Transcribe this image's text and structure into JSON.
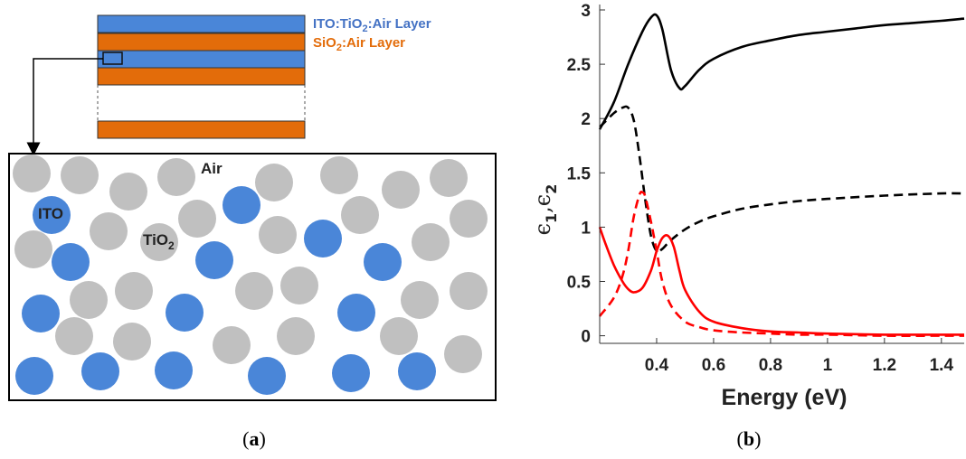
{
  "panel_a": {
    "label": "a",
    "legend": {
      "ito_layer": {
        "pre": "ITO:TiO",
        "sub": "2",
        "post": ":Air Layer",
        "color": "#4472c4"
      },
      "sio2_layer": {
        "pre": "SiO",
        "sub": "2",
        "post": ":Air Layer",
        "color": "#e36c0a"
      }
    },
    "labels": {
      "air": "Air",
      "ito": "ITO",
      "tio2_pre": "TiO",
      "tio2_sub": "2"
    },
    "colors": {
      "ito_particle": "#4a86d8",
      "tio2_particle": "#c0c0c0",
      "ito_stripe": "#4a86d8",
      "sio2_stripe": "#e36c0a"
    }
  },
  "panel_b": {
    "label": "b"
  },
  "chart_data": {
    "type": "line",
    "xlabel": "Energy (eV)",
    "ylabel": {
      "e": "ϵ",
      "s1": "1",
      "comma": ",",
      "s2": "2"
    },
    "xlim": [
      0.2,
      1.48
    ],
    "ylim": [
      -0.07,
      3.05
    ],
    "xticks": [
      0.4,
      0.6,
      0.8,
      1,
      1.2,
      1.4
    ],
    "xtick_labels": [
      "0.4",
      "0.6",
      "0.8",
      "1",
      "1.2",
      "1.4"
    ],
    "yticks": [
      0,
      0.5,
      1,
      1.5,
      2,
      2.5,
      3
    ],
    "ytick_labels": [
      "0",
      "0.5",
      "1",
      "1.5",
      "2",
      "2.5",
      "3"
    ],
    "grid": false,
    "series": [
      {
        "color": "#000000",
        "dash": "solid",
        "x": [
          0.2,
          0.25,
          0.3,
          0.35,
          0.38,
          0.4,
          0.42,
          0.45,
          0.48,
          0.5,
          0.55,
          0.6,
          0.7,
          0.8,
          0.9,
          1.0,
          1.1,
          1.2,
          1.3,
          1.4,
          1.48
        ],
        "y": [
          1.9,
          2.15,
          2.5,
          2.8,
          2.93,
          2.95,
          2.82,
          2.45,
          2.28,
          2.3,
          2.45,
          2.55,
          2.66,
          2.72,
          2.77,
          2.8,
          2.83,
          2.86,
          2.88,
          2.9,
          2.92
        ]
      },
      {
        "color": "#000000",
        "dash": "dashed",
        "x": [
          0.2,
          0.25,
          0.28,
          0.3,
          0.32,
          0.34,
          0.36,
          0.38,
          0.4,
          0.42,
          0.45,
          0.5,
          0.55,
          0.6,
          0.7,
          0.8,
          0.9,
          1.0,
          1.2,
          1.4,
          1.48
        ],
        "y": [
          1.92,
          2.05,
          2.1,
          2.1,
          1.98,
          1.65,
          1.25,
          0.92,
          0.78,
          0.8,
          0.88,
          0.98,
          1.05,
          1.1,
          1.17,
          1.21,
          1.24,
          1.26,
          1.29,
          1.31,
          1.31
        ]
      },
      {
        "color": "#ff0000",
        "dash": "solid",
        "x": [
          0.2,
          0.22,
          0.25,
          0.28,
          0.3,
          0.32,
          0.35,
          0.38,
          0.4,
          0.42,
          0.44,
          0.46,
          0.48,
          0.5,
          0.55,
          0.6,
          0.7,
          0.8,
          0.9,
          1.0,
          1.2,
          1.4,
          1.48
        ],
        "y": [
          1.0,
          0.85,
          0.65,
          0.5,
          0.43,
          0.4,
          0.44,
          0.6,
          0.78,
          0.9,
          0.92,
          0.82,
          0.6,
          0.42,
          0.22,
          0.13,
          0.07,
          0.04,
          0.03,
          0.02,
          0.01,
          0.01,
          0.01
        ]
      },
      {
        "color": "#ff0000",
        "dash": "dashed",
        "x": [
          0.2,
          0.25,
          0.28,
          0.3,
          0.32,
          0.34,
          0.35,
          0.36,
          0.38,
          0.4,
          0.42,
          0.45,
          0.5,
          0.55,
          0.6,
          0.7,
          0.8,
          0.9,
          1.0,
          1.2,
          1.4,
          1.48
        ],
        "y": [
          0.18,
          0.35,
          0.55,
          0.78,
          1.1,
          1.3,
          1.32,
          1.28,
          1.05,
          0.78,
          0.5,
          0.28,
          0.13,
          0.08,
          0.05,
          0.03,
          0.02,
          0.01,
          0.01,
          0.0,
          0.0,
          0.0
        ]
      }
    ]
  }
}
